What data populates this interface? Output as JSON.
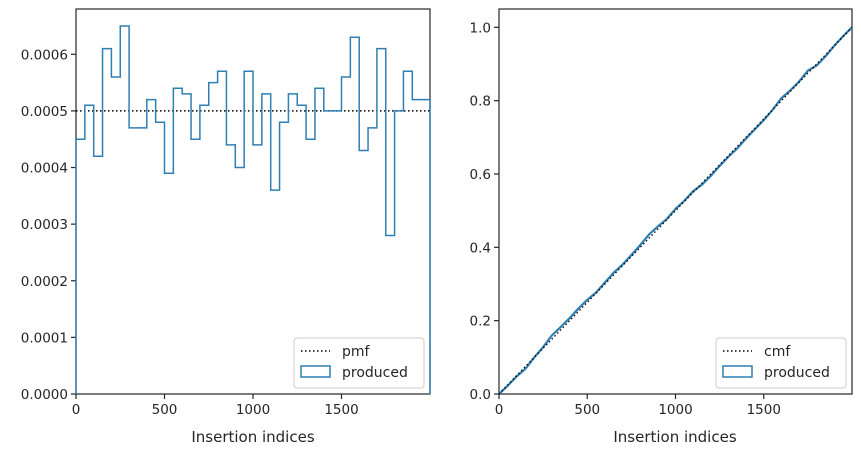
{
  "chart_data": [
    {
      "type": "histogram",
      "xlabel": "Insertion indices",
      "ylabel": "",
      "title": "",
      "xlim": [
        0,
        2000
      ],
      "ylim": [
        0,
        0.00068
      ],
      "xticks": [
        0,
        500,
        1000,
        1500
      ],
      "xtick_labels": [
        "0",
        "500",
        "1000",
        "1500"
      ],
      "yticks": [
        0,
        0.0001,
        0.0002,
        0.0003,
        0.0004,
        0.0005,
        0.0006
      ],
      "ytick_labels": [
        "0.0000",
        "0.0001",
        "0.0002",
        "0.0003",
        "0.0004",
        "0.0005",
        "0.0006"
      ],
      "reference_line": {
        "name": "pmf",
        "y": 0.0005,
        "style": "dotted",
        "color": "#000000"
      },
      "series": [
        {
          "name": "produced",
          "color": "#2f7fb3",
          "bin_edges": [
            0,
            50,
            100,
            150,
            200,
            250,
            300,
            350,
            400,
            450,
            500,
            550,
            600,
            650,
            700,
            750,
            800,
            850,
            900,
            950,
            1000,
            1050,
            1100,
            1150,
            1200,
            1250,
            1300,
            1350,
            1400,
            1450,
            1500,
            1550,
            1600,
            1650,
            1700,
            1750,
            1800,
            1850,
            1900,
            1950,
            2000
          ],
          "values": [
            0.00045,
            0.00051,
            0.00042,
            0.00061,
            0.00056,
            0.00065,
            0.00047,
            0.00047,
            0.00052,
            0.00048,
            0.00039,
            0.00054,
            0.00053,
            0.00045,
            0.00051,
            0.00055,
            0.00057,
            0.00044,
            0.0004,
            0.00057,
            0.00044,
            0.00053,
            0.00036,
            0.00048,
            0.00053,
            0.00051,
            0.00045,
            0.00054,
            0.0005,
            0.0005,
            0.00056,
            0.00063,
            0.00043,
            0.00047,
            0.00061,
            0.00028,
            0.0005,
            0.00057,
            0.00052,
            0.00052
          ]
        }
      ],
      "legend": {
        "placement": "lower-right",
        "entries": [
          "pmf",
          "produced"
        ]
      },
      "grid": false
    },
    {
      "type": "line",
      "xlabel": "Insertion indices",
      "ylabel": "",
      "title": "",
      "xlim": [
        0,
        2000
      ],
      "ylim": [
        0,
        1.05
      ],
      "xticks": [
        0,
        500,
        1000,
        1500
      ],
      "xtick_labels": [
        "0",
        "500",
        "1000",
        "1500"
      ],
      "yticks": [
        0,
        0.2,
        0.4,
        0.6,
        0.8,
        1.0
      ],
      "ytick_labels": [
        "0.0",
        "0.2",
        "0.4",
        "0.6",
        "0.8",
        "1.0"
      ],
      "reference_line": {
        "name": "cmf",
        "x": [
          0,
          2000
        ],
        "y": [
          0,
          1
        ],
        "style": "dotted",
        "color": "#000000"
      },
      "series": [
        {
          "name": "produced",
          "color": "#2f7fb3",
          "x": [
            0,
            50,
            100,
            150,
            200,
            250,
            300,
            350,
            400,
            450,
            500,
            550,
            600,
            650,
            700,
            750,
            800,
            850,
            900,
            950,
            1000,
            1050,
            1100,
            1150,
            1200,
            1250,
            1300,
            1350,
            1400,
            1450,
            1500,
            1550,
            1600,
            1650,
            1700,
            1750,
            1800,
            1850,
            1900,
            1950,
            2000
          ],
          "y": [
            0,
            0.023,
            0.048,
            0.069,
            0.1,
            0.128,
            0.16,
            0.183,
            0.207,
            0.233,
            0.257,
            0.277,
            0.304,
            0.331,
            0.353,
            0.379,
            0.406,
            0.435,
            0.457,
            0.477,
            0.505,
            0.527,
            0.553,
            0.571,
            0.595,
            0.622,
            0.647,
            0.67,
            0.697,
            0.722,
            0.747,
            0.775,
            0.807,
            0.828,
            0.852,
            0.882,
            0.896,
            0.921,
            0.95,
            0.976,
            1.0
          ]
        }
      ],
      "legend": {
        "placement": "lower-right",
        "entries": [
          "cmf",
          "produced"
        ]
      },
      "grid": false
    }
  ]
}
